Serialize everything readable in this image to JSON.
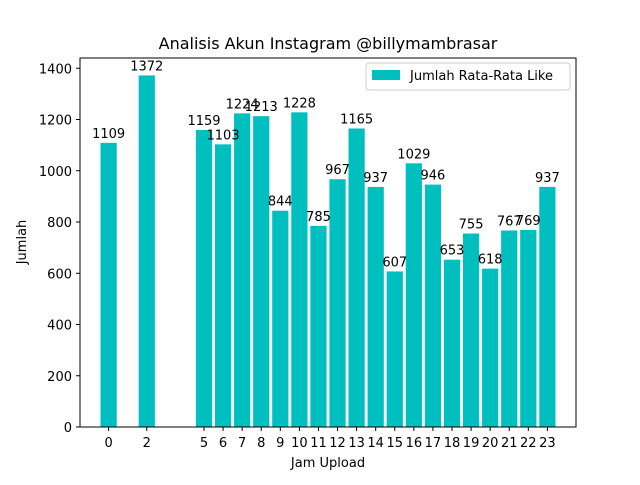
{
  "chart_data": {
    "type": "bar",
    "title": "Analisis Akun Instagram @billymambrasar",
    "xlabel": "Jam Upload",
    "ylabel": "Jumlah",
    "x": [
      0,
      2,
      5,
      6,
      7,
      8,
      9,
      10,
      11,
      12,
      13,
      14,
      15,
      16,
      17,
      18,
      19,
      20,
      21,
      22,
      23
    ],
    "x_tick_labels": [
      "0",
      "2",
      "5",
      "6",
      "7",
      "8",
      "9",
      "10",
      "11",
      "12",
      "13",
      "14",
      "15",
      "16",
      "17",
      "18",
      "19",
      "20",
      "21",
      "22",
      "23"
    ],
    "series": [
      {
        "name": "Jumlah Rata-Rata Like",
        "color": "#00bfbf",
        "values": [
          1109,
          1372,
          1159,
          1103,
          1224,
          1213,
          844,
          1228,
          785,
          967,
          1165,
          937,
          607,
          1029,
          946,
          653,
          755,
          618,
          767,
          769,
          937
        ],
        "labels": [
          "1109",
          "1372",
          "1159",
          "1103",
          "1224",
          "1213",
          "844",
          "1228",
          "785",
          "967",
          "1165",
          "937",
          "607",
          "1029",
          "946",
          "653",
          "755",
          "618",
          "767",
          "769",
          "937"
        ]
      }
    ],
    "xlim": [
      -1.5,
      24.5
    ],
    "ylim": [
      0,
      1440
    ],
    "y_ticks": [
      0,
      200,
      400,
      600,
      800,
      1000,
      1200,
      1400
    ],
    "y_tick_labels": [
      "0",
      "200",
      "400",
      "600",
      "800",
      "1000",
      "1200",
      "1400"
    ],
    "grid": false,
    "legend_position": "top-right"
  }
}
